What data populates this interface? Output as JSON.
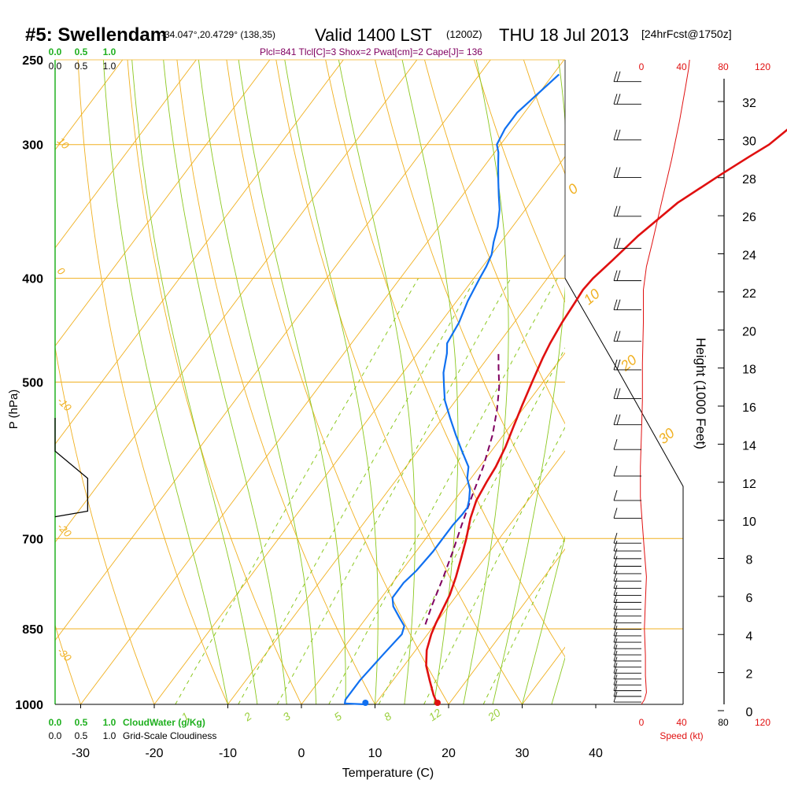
{
  "header": {
    "station": "#5: Swellendam",
    "coords": "-34.047°,20.4729° (138,35)",
    "valid": "Valid 1400 LST",
    "zulu": "(1200Z)",
    "date": "THU 18 Jul 2013",
    "forecast": "[24hrFcst@1750z]",
    "indices": "Plcl=841 Tlcl[C]=3 Shox=2 Pwat[cm]=2 Cape[J]= 136"
  },
  "colors": {
    "isobar": "#f0b020",
    "dry_adiabat": "#f0b020",
    "moist_adiabat": "#8cc820",
    "mixing_ratio": "#8cc820",
    "temperature": "#e01010",
    "dewpoint": "#1070f0",
    "parcel": "#800060",
    "cloudwater": "#20b020",
    "speed": "#e01010"
  },
  "chart_data": {
    "type": "line",
    "title": "#5: Swellendam",
    "xlabel": "Temperature (C)",
    "ylabel": "P (hPa)",
    "y2label": "Height (1000 Feet)",
    "xlim": [
      -35,
      45
    ],
    "ylim": [
      1000,
      250
    ],
    "x_ticks": [
      -30,
      -20,
      -10,
      0,
      10,
      20,
      30,
      40
    ],
    "p_ticks": [
      250,
      300,
      400,
      500,
      700,
      850,
      1000
    ],
    "height_ticks": [
      0,
      2,
      4,
      6,
      8,
      10,
      12,
      14,
      16,
      18,
      20,
      22,
      24,
      26,
      28,
      30,
      32
    ],
    "speed_ticks_top": [
      "0",
      "40",
      "80",
      "120"
    ],
    "speed_ticks_bottom": [
      "0",
      "40",
      "80",
      "120"
    ],
    "speed_label": "Speed (kt)",
    "cloudwater_ticks": [
      "0.0",
      "0.5",
      "1.0"
    ],
    "cloudiness_ticks": [
      "0.0",
      "0.5",
      "1.0"
    ],
    "cloudwater_label": "CloudWater (g/Kg)",
    "cloudiness_label": "Grid-Scale Cloudiness",
    "mixing_ratio_labels": [
      "1",
      "2",
      "3",
      "5",
      "8",
      "12",
      "20"
    ],
    "theta_labels_left": [
      "10",
      "0",
      "-10",
      "-20",
      "-30"
    ],
    "theta_labels_right": [
      "0",
      "10",
      "20",
      "30"
    ],
    "series": [
      {
        "name": "temperature",
        "points": [
          [
            18.5,
            1000
          ],
          [
            17,
            980
          ],
          [
            15,
            950
          ],
          [
            13,
            920
          ],
          [
            11.5,
            890
          ],
          [
            10.5,
            860
          ],
          [
            10,
            840
          ],
          [
            9,
            790
          ],
          [
            8,
            760
          ],
          [
            6.8,
            730
          ],
          [
            5.5,
            700
          ],
          [
            4,
            670
          ],
          [
            3,
            645
          ],
          [
            2.5,
            620
          ],
          [
            2.2,
            600
          ],
          [
            1.5,
            575
          ],
          [
            0.5,
            550
          ],
          [
            -0.5,
            525
          ],
          [
            -1.5,
            500
          ],
          [
            -2.5,
            475
          ],
          [
            -3,
            460
          ],
          [
            -3.5,
            440
          ],
          [
            -3.8,
            420
          ],
          [
            -4,
            410
          ],
          [
            -3.8,
            400
          ],
          [
            -3,
            385
          ],
          [
            -2,
            365
          ],
          [
            0,
            340
          ],
          [
            3,
            320
          ],
          [
            5,
            308
          ],
          [
            6.5,
            300
          ],
          [
            7.5,
            290
          ],
          [
            8,
            280
          ],
          [
            8.5,
            270
          ],
          [
            9,
            260
          ]
        ]
      },
      {
        "name": "dewpoint",
        "points": [
          [
            8.7,
            1000
          ],
          [
            5.8,
            998
          ],
          [
            5.5,
            990
          ],
          [
            5.5,
            950
          ],
          [
            6,
            900
          ],
          [
            6.5,
            860
          ],
          [
            6,
            845
          ],
          [
            4.5,
            830
          ],
          [
            2.5,
            810
          ],
          [
            1.5,
            795
          ],
          [
            1.5,
            770
          ],
          [
            2,
            750
          ],
          [
            2.3,
            720
          ],
          [
            2.3,
            700
          ],
          [
            2.3,
            680
          ],
          [
            2.5,
            665
          ],
          [
            2.5,
            655
          ],
          [
            2,
            645
          ],
          [
            1,
            630
          ],
          [
            -0.5,
            615
          ],
          [
            -1.5,
            600
          ],
          [
            -4,
            580
          ],
          [
            -6.5,
            560
          ],
          [
            -9,
            540
          ],
          [
            -11.5,
            520
          ],
          [
            -13,
            505
          ],
          [
            -14.5,
            490
          ],
          [
            -16,
            470
          ],
          [
            -17,
            460
          ],
          [
            -17.5,
            440
          ],
          [
            -18.5,
            420
          ],
          [
            -19.2,
            400
          ],
          [
            -19.5,
            390
          ],
          [
            -20,
            380
          ],
          [
            -21,
            370
          ],
          [
            -22,
            358
          ],
          [
            -23.5,
            345
          ],
          [
            -25,
            335
          ],
          [
            -26.5,
            325
          ],
          [
            -28,
            315
          ],
          [
            -29.5,
            305
          ],
          [
            -30.5,
            300
          ],
          [
            -31,
            290
          ],
          [
            -31,
            280
          ],
          [
            -30.2,
            270
          ],
          [
            -29.2,
            258
          ]
        ]
      },
      {
        "name": "parcel",
        "points": [
          [
            8.7,
            842
          ],
          [
            7.7,
            810
          ],
          [
            6.3,
            760
          ],
          [
            5,
            720
          ],
          [
            3.5,
            680
          ],
          [
            2,
            640
          ],
          [
            0.5,
            600
          ],
          [
            -1.5,
            560
          ],
          [
            -3.5,
            530
          ],
          [
            -5.5,
            505
          ],
          [
            -7.5,
            485
          ],
          [
            -9,
            470
          ]
        ]
      }
    ],
    "surface_temperature": 18.5,
    "surface_dewpoint": 8.7,
    "cloudiness_profile": [
      [
        0,
        540
      ],
      [
        0,
        580
      ],
      [
        0.6,
        615
      ],
      [
        0.6,
        660
      ],
      [
        0,
        668
      ]
    ],
    "wind_speed_kt": [
      [
        0,
        1000
      ],
      [
        3,
        990
      ],
      [
        5,
        975
      ],
      [
        4,
        940
      ],
      [
        4,
        900
      ],
      [
        3,
        850
      ],
      [
        4,
        800
      ],
      [
        5,
        760
      ],
      [
        3,
        720
      ],
      [
        1,
        680
      ],
      [
        -1,
        640
      ],
      [
        -1,
        600
      ],
      [
        0,
        560
      ],
      [
        1,
        520
      ],
      [
        1,
        480
      ],
      [
        2,
        440
      ],
      [
        2,
        410
      ],
      [
        5,
        390
      ],
      [
        11,
        370
      ],
      [
        20,
        340
      ],
      [
        30,
        310
      ],
      [
        38,
        285
      ],
      [
        44,
        265
      ],
      [
        47,
        255
      ],
      [
        48,
        250
      ]
    ],
    "wind_direction_note": "westerly (from W) throughout column"
  }
}
